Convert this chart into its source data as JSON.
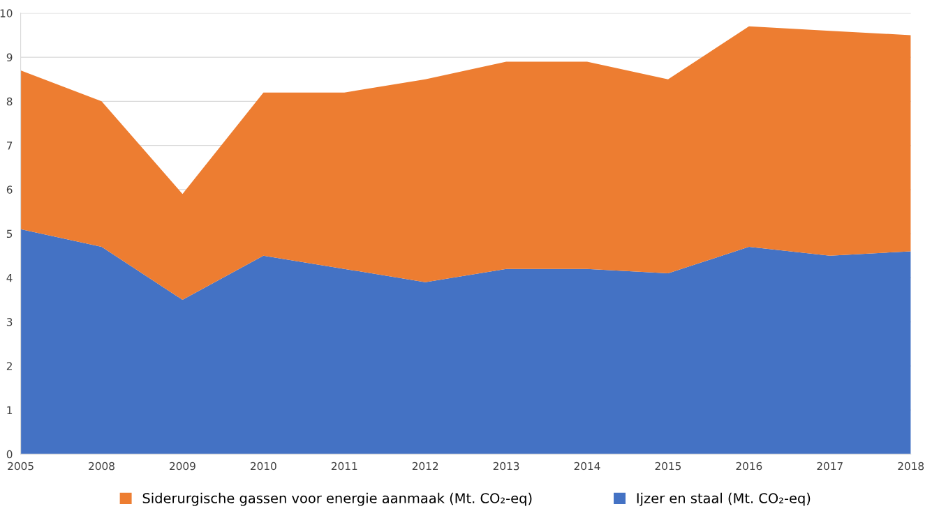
{
  "chart_data": {
    "type": "area",
    "stacked": true,
    "categories": [
      "2005",
      "2008",
      "2009",
      "2010",
      "2011",
      "2012",
      "2013",
      "2014",
      "2015",
      "2016",
      "2017",
      "2018"
    ],
    "series": [
      {
        "name": "Ijzer en staal (Mt. CO₂-eq)",
        "color": "#4472c4",
        "values": [
          5.1,
          4.7,
          3.5,
          4.5,
          4.2,
          3.9,
          4.2,
          4.2,
          4.1,
          4.7,
          4.5,
          4.6
        ]
      },
      {
        "name": "Siderurgische gassen voor energie aanmaak (Mt. CO₂-eq)",
        "color": "#ed7d31",
        "values": [
          3.6,
          3.3,
          2.4,
          3.7,
          4.0,
          4.6,
          4.7,
          4.7,
          4.4,
          5.0,
          5.1,
          4.9
        ]
      }
    ],
    "ylim": [
      0,
      10
    ],
    "yticks": [
      0,
      1,
      2,
      3,
      4,
      5,
      6,
      7,
      8,
      9,
      10
    ],
    "grid": "y",
    "legend": "bottom"
  }
}
